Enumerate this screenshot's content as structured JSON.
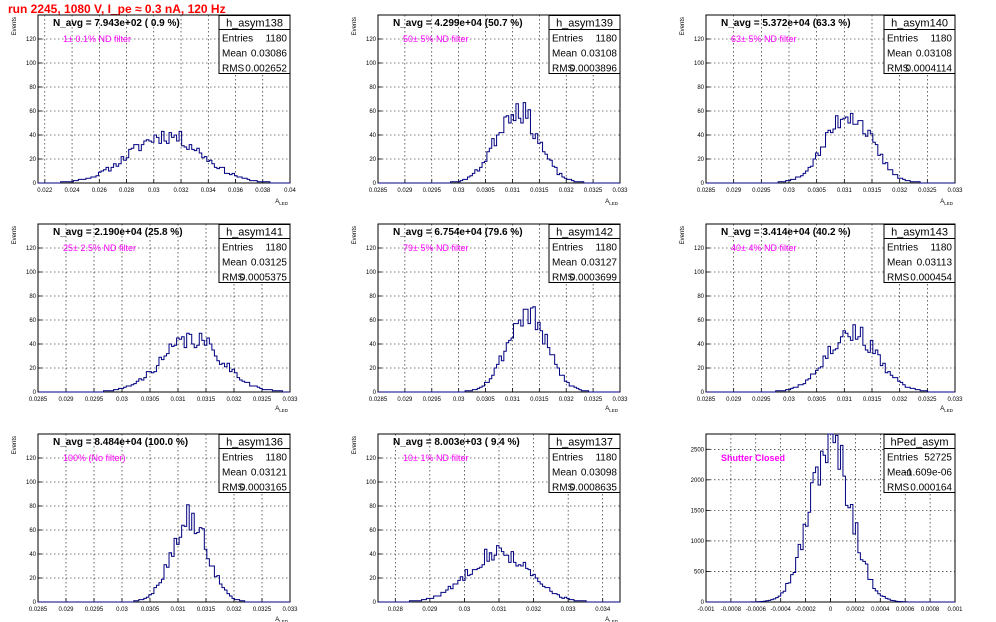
{
  "title": "run 2245,  1080 V, I_pe ≈ 0.3 nA, 120 Hz",
  "colors": {
    "title": "#ff0000",
    "histogram": "#000080",
    "annotation": "#ff00ff"
  },
  "stat_labels": {
    "entries": "Entries",
    "mean": "Mean",
    "rms": "RMS"
  },
  "chart_data": [
    {
      "type": "histogram",
      "name": "h_asym138",
      "ylabel": "Events",
      "xlabel": "A_LED",
      "navg": "N_avg = 7.943e+02 ( 0.9 %)",
      "annotation": "1± 0.1% ND filter",
      "stats": {
        "entries": "1180",
        "mean": "0.03086",
        "rms": "0.002652"
      },
      "xlim": [
        0.0215,
        0.04
      ],
      "ylim": [
        0,
        140
      ],
      "grid": true,
      "xticks": [
        0.022,
        0.024,
        0.026,
        0.028,
        0.03,
        0.032,
        0.034,
        0.036,
        0.038,
        0.04
      ],
      "xticklabels": [
        "0.022",
        "0.024",
        "0.026",
        "0.028",
        "0.03",
        "0.032",
        "0.034",
        "0.036",
        "0.038",
        "0.04"
      ],
      "yticks": [
        0,
        20,
        40,
        60,
        80,
        100,
        120
      ],
      "yticklabels": [
        "0",
        "20",
        "40",
        "60",
        "80",
        "100",
        "120"
      ],
      "mean": 0.03086,
      "sigma": 0.002652,
      "entries": 1180,
      "peak": 40,
      "seed": 11
    },
    {
      "type": "histogram",
      "name": "h_asym139",
      "ylabel": "Events",
      "xlabel": "A_LED",
      "navg": "N_avg = 4.299e+04 (50.7 %)",
      "annotation": "50± 5% ND filter",
      "stats": {
        "entries": "1180",
        "mean": "0.03108",
        "rms": "0.0003896"
      },
      "xlim": [
        0.0285,
        0.033
      ],
      "ylim": [
        0,
        140
      ],
      "grid": true,
      "xticks": [
        0.0285,
        0.029,
        0.0295,
        0.03,
        0.0305,
        0.031,
        0.0315,
        0.032,
        0.0325,
        0.033
      ],
      "xticklabels": [
        "0.0285",
        "0.029",
        "0.0295",
        "0.03",
        "0.0305",
        "0.031",
        "0.0315",
        "0.032",
        "0.0325",
        "0.033"
      ],
      "yticks": [
        0,
        20,
        40,
        60,
        80,
        100,
        120
      ],
      "yticklabels": [
        "0",
        "20",
        "40",
        "60",
        "80",
        "100",
        "120"
      ],
      "mean": 0.03108,
      "sigma": 0.0003896,
      "entries": 1180,
      "peak": 62,
      "seed": 23
    },
    {
      "type": "histogram",
      "name": "h_asym140",
      "ylabel": "Events",
      "xlabel": "A_LED",
      "navg": "N_avg = 5.372e+04 (63.3 %)",
      "annotation": "63± 5% ND filter",
      "stats": {
        "entries": "1180",
        "mean": "0.03108",
        "rms": "0.0004114"
      },
      "xlim": [
        0.0285,
        0.033
      ],
      "ylim": [
        0,
        140
      ],
      "grid": true,
      "xticks": [
        0.0285,
        0.029,
        0.0295,
        0.03,
        0.0305,
        0.031,
        0.0315,
        0.032,
        0.0325,
        0.033
      ],
      "xticklabels": [
        "0.0285",
        "0.029",
        "0.0295",
        "0.03",
        "0.0305",
        "0.031",
        "0.0315",
        "0.032",
        "0.0325",
        "0.033"
      ],
      "yticks": [
        0,
        20,
        40,
        60,
        80,
        100,
        120
      ],
      "yticklabels": [
        "0",
        "20",
        "40",
        "60",
        "80",
        "100",
        "120"
      ],
      "mean": 0.03108,
      "sigma": 0.0004114,
      "entries": 1180,
      "peak": 58,
      "seed": 37
    },
    {
      "type": "histogram",
      "name": "h_asym141",
      "ylabel": "Events",
      "xlabel": "A_LED",
      "navg": "N_avg = 2.190e+04 (25.8 %)",
      "annotation": "25± 2.5% ND filter",
      "stats": {
        "entries": "1180",
        "mean": "0.03125",
        "rms": "0.0005375"
      },
      "xlim": [
        0.0285,
        0.033
      ],
      "ylim": [
        0,
        140
      ],
      "grid": true,
      "xticks": [
        0.0285,
        0.029,
        0.0295,
        0.03,
        0.0305,
        0.031,
        0.0315,
        0.032,
        0.0325,
        0.033
      ],
      "xticklabels": [
        "0.0285",
        "0.029",
        "0.0295",
        "0.03",
        "0.0305",
        "0.031",
        "0.0315",
        "0.032",
        "0.0325",
        "0.033"
      ],
      "yticks": [
        0,
        20,
        40,
        60,
        80,
        100,
        120
      ],
      "yticklabels": [
        "0",
        "20",
        "40",
        "60",
        "80",
        "100",
        "120"
      ],
      "mean": 0.03125,
      "sigma": 0.0005375,
      "entries": 1180,
      "peak": 44,
      "seed": 41
    },
    {
      "type": "histogram",
      "name": "h_asym142",
      "ylabel": "Events",
      "xlabel": "A_LED",
      "navg": "N_avg = 6.754e+04 (79.6 %)",
      "annotation": "79± 5% ND filter",
      "stats": {
        "entries": "1180",
        "mean": "0.03127",
        "rms": "0.0003699"
      },
      "xlim": [
        0.0285,
        0.033
      ],
      "ylim": [
        0,
        140
      ],
      "grid": true,
      "xticks": [
        0.0285,
        0.029,
        0.0295,
        0.03,
        0.0305,
        0.031,
        0.0315,
        0.032,
        0.0325,
        0.033
      ],
      "xticklabels": [
        "0.0285",
        "0.029",
        "0.0295",
        "0.03",
        "0.0305",
        "0.031",
        "0.0315",
        "0.032",
        "0.0325",
        "0.033"
      ],
      "yticks": [
        0,
        20,
        40,
        60,
        80,
        100,
        120
      ],
      "yticklabels": [
        "0",
        "20",
        "40",
        "60",
        "80",
        "100",
        "120"
      ],
      "mean": 0.03127,
      "sigma": 0.0003699,
      "entries": 1180,
      "peak": 65,
      "seed": 53
    },
    {
      "type": "histogram",
      "name": "h_asym143",
      "ylabel": "Events",
      "xlabel": "A_LED",
      "navg": "N_avg = 3.414e+04 (40.2 %)",
      "annotation": "40± 4% ND filter",
      "stats": {
        "entries": "1180",
        "mean": "0.03113",
        "rms": "0.000454"
      },
      "xlim": [
        0.0285,
        0.033
      ],
      "ylim": [
        0,
        140
      ],
      "grid": true,
      "xticks": [
        0.0285,
        0.029,
        0.0295,
        0.03,
        0.0305,
        0.031,
        0.0315,
        0.032,
        0.0325,
        0.033
      ],
      "xticklabels": [
        "0.0285",
        "0.029",
        "0.0295",
        "0.03",
        "0.0305",
        "0.031",
        "0.0315",
        "0.032",
        "0.0325",
        "0.033"
      ],
      "yticks": [
        0,
        20,
        40,
        60,
        80,
        100,
        120
      ],
      "yticklabels": [
        "0",
        "20",
        "40",
        "60",
        "80",
        "100",
        "120"
      ],
      "mean": 0.03113,
      "sigma": 0.000454,
      "entries": 1180,
      "peak": 50,
      "seed": 67
    },
    {
      "type": "histogram",
      "name": "h_asym136",
      "ylabel": "Events",
      "xlabel": "A_LED",
      "navg": "N_avg = 8.484e+04 (100.0 %)",
      "annotation": "100% (No filter)",
      "stats": {
        "entries": "1180",
        "mean": "0.03121",
        "rms": "0.0003165"
      },
      "xlim": [
        0.0285,
        0.033
      ],
      "ylim": [
        0,
        140
      ],
      "grid": true,
      "xticks": [
        0.0285,
        0.029,
        0.0295,
        0.03,
        0.0305,
        0.031,
        0.0315,
        0.032,
        0.0325,
        0.033
      ],
      "xticklabels": [
        "0.0285",
        "0.029",
        "0.0295",
        "0.03",
        "0.0305",
        "0.031",
        "0.0315",
        "0.032",
        "0.0325",
        "0.033"
      ],
      "yticks": [
        0,
        20,
        40,
        60,
        80,
        100,
        120
      ],
      "yticklabels": [
        "0",
        "20",
        "40",
        "60",
        "80",
        "100",
        "120"
      ],
      "mean": 0.03121,
      "sigma": 0.0003165,
      "entries": 1180,
      "peak": 70,
      "seed": 79
    },
    {
      "type": "histogram",
      "name": "h_asym137",
      "ylabel": "Events",
      "xlabel": "A_LED",
      "navg": "N_avg = 8.003e+03 ( 9.4 %)",
      "annotation": "10± 1% ND filter",
      "stats": {
        "entries": "1180",
        "mean": "0.03098",
        "rms": "0.0008635"
      },
      "xlim": [
        0.0275,
        0.0345
      ],
      "ylim": [
        0,
        140
      ],
      "grid": true,
      "xticks": [
        0.028,
        0.029,
        0.03,
        0.031,
        0.032,
        0.033,
        0.034
      ],
      "xticklabels": [
        "0.028",
        "0.029",
        "0.03",
        "0.031",
        "0.032",
        "0.033",
        "0.034"
      ],
      "yticks": [
        0,
        20,
        40,
        60,
        80,
        100,
        120
      ],
      "yticklabels": [
        "0",
        "20",
        "40",
        "60",
        "80",
        "100",
        "120"
      ],
      "mean": 0.03098,
      "sigma": 0.0008635,
      "entries": 1180,
      "peak": 42,
      "seed": 83
    },
    {
      "type": "histogram",
      "name": "hPed_asym",
      "ylabel": "",
      "xlabel": "",
      "navg": "",
      "annotation": "Shutter Closed",
      "stats": {
        "entries": "52725",
        "mean": "-1.609e-06",
        "rms": "0.000164"
      },
      "xlim": [
        -0.001,
        0.001
      ],
      "ylim": [
        0,
        2750
      ],
      "grid": true,
      "xticks": [
        -0.001,
        -0.0008,
        -0.0006,
        -0.0004,
        -0.0002,
        0,
        0.0002,
        0.0004,
        0.0006,
        0.0008,
        0.001
      ],
      "xticklabels": [
        "-0.001",
        "-0.0008",
        "-0.0006",
        "-0.0004",
        "-0.0002",
        "0",
        "0.0002",
        "0.0004",
        "0.0006",
        "0.0008",
        "0.001"
      ],
      "yticks": [
        0,
        500,
        1000,
        1500,
        2000,
        2500
      ],
      "yticklabels": [
        "0",
        "500",
        "1000",
        "1500",
        "2000",
        "2500"
      ],
      "mean": -1.609e-06,
      "sigma": 0.000164,
      "entries": 52725,
      "peak": 2600,
      "seed": 97
    }
  ]
}
